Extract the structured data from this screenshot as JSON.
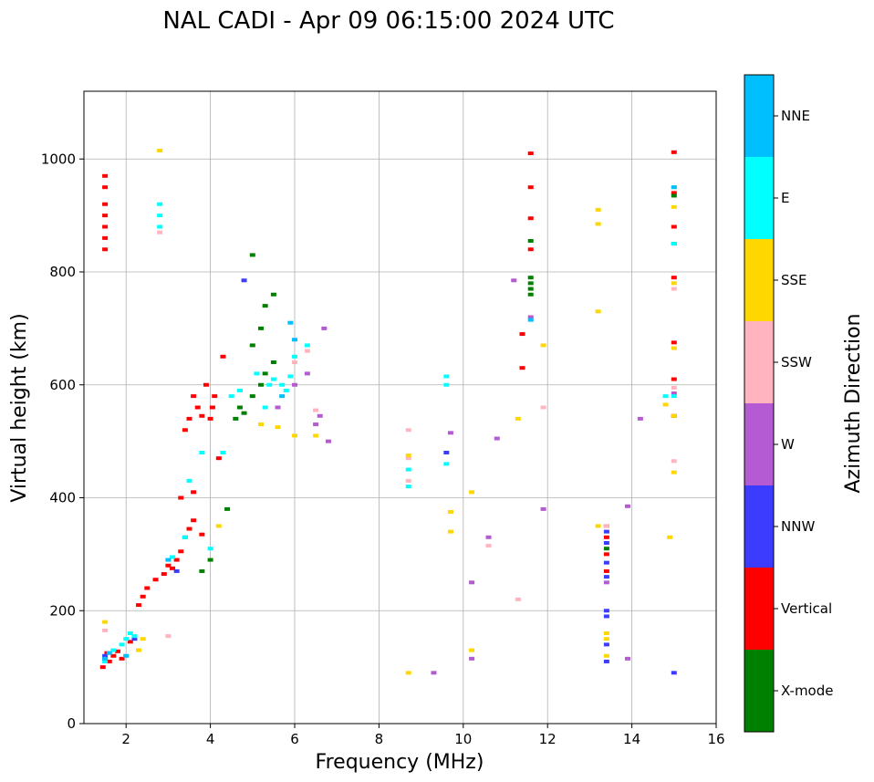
{
  "chart_data": {
    "type": "scatter",
    "title": "NAL CADI - Apr 09 06:15:00 2024 UTC",
    "xlabel": "Frequency (MHz)",
    "ylabel": "Virtual height (km)",
    "xlim": [
      1,
      16
    ],
    "ylim": [
      0,
      1120
    ],
    "xticks": [
      2,
      4,
      6,
      8,
      10,
      12,
      14,
      16
    ],
    "yticks": [
      0,
      200,
      400,
      600,
      800,
      1000
    ],
    "grid": true,
    "colorbar": {
      "label": "Azimuth Direction",
      "categories": [
        {
          "name": "X-mode",
          "color": "#008000"
        },
        {
          "name": "Vertical",
          "color": "#ff0000"
        },
        {
          "name": "NNW",
          "color": "#3c3cff"
        },
        {
          "name": "W",
          "color": "#b45ad2"
        },
        {
          "name": "SSW",
          "color": "#ffb4c0"
        },
        {
          "name": "SSE",
          "color": "#ffd700"
        },
        {
          "name": "E",
          "color": "#00ffff"
        },
        {
          "name": "NNE",
          "color": "#00bfff"
        }
      ]
    },
    "series": [
      {
        "name": "Vertical",
        "points": [
          [
            1.45,
            100
          ],
          [
            1.5,
            115
          ],
          [
            1.55,
            125
          ],
          [
            1.6,
            110
          ],
          [
            1.7,
            120
          ],
          [
            1.8,
            128
          ],
          [
            1.9,
            115
          ],
          [
            2.1,
            145
          ],
          [
            2.3,
            210
          ],
          [
            2.4,
            225
          ],
          [
            2.5,
            240
          ],
          [
            2.7,
            255
          ],
          [
            2.9,
            265
          ],
          [
            3.0,
            280
          ],
          [
            3.1,
            275
          ],
          [
            3.2,
            290
          ],
          [
            3.3,
            305
          ],
          [
            3.4,
            330
          ],
          [
            3.5,
            345
          ],
          [
            3.6,
            360
          ],
          [
            3.3,
            400
          ],
          [
            3.6,
            410
          ],
          [
            3.8,
            335
          ],
          [
            3.4,
            520
          ],
          [
            3.5,
            540
          ],
          [
            3.6,
            580
          ],
          [
            3.7,
            560
          ],
          [
            3.8,
            545
          ],
          [
            4.0,
            540
          ],
          [
            4.05,
            560
          ],
          [
            4.1,
            580
          ],
          [
            3.9,
            600
          ],
          [
            4.2,
            470
          ],
          [
            4.3,
            650
          ],
          [
            1.5,
            840
          ],
          [
            1.5,
            860
          ],
          [
            1.5,
            880
          ],
          [
            1.5,
            900
          ],
          [
            1.5,
            920
          ],
          [
            1.5,
            950
          ],
          [
            1.5,
            970
          ],
          [
            11.6,
            1010
          ],
          [
            11.6,
            950
          ],
          [
            11.6,
            895
          ],
          [
            11.6,
            840
          ],
          [
            11.4,
            690
          ],
          [
            11.4,
            630
          ],
          [
            15.0,
            1012
          ],
          [
            15.0,
            880
          ],
          [
            15.0,
            850
          ],
          [
            15.0,
            610
          ],
          [
            15.0,
            545
          ],
          [
            15.0,
            940
          ],
          [
            13.4,
            350
          ],
          [
            13.4,
            330
          ],
          [
            13.4,
            300
          ],
          [
            13.4,
            270
          ],
          [
            15.0,
            790
          ],
          [
            15.0,
            675
          ]
        ]
      },
      {
        "name": "X-mode",
        "points": [
          [
            3.8,
            270
          ],
          [
            4.0,
            290
          ],
          [
            4.4,
            380
          ],
          [
            4.6,
            540
          ],
          [
            4.7,
            560
          ],
          [
            4.8,
            550
          ],
          [
            5.0,
            580
          ],
          [
            5.2,
            600
          ],
          [
            5.3,
            620
          ],
          [
            5.5,
            640
          ],
          [
            5.0,
            670
          ],
          [
            5.2,
            700
          ],
          [
            5.3,
            740
          ],
          [
            5.5,
            760
          ],
          [
            5.0,
            830
          ],
          [
            11.6,
            780
          ],
          [
            11.6,
            770
          ],
          [
            11.6,
            760
          ],
          [
            11.6,
            790
          ],
          [
            11.6,
            855
          ],
          [
            13.4,
            310
          ],
          [
            15.0,
            935
          ]
        ]
      },
      {
        "name": "NNW",
        "points": [
          [
            1.5,
            120
          ],
          [
            2.2,
            150
          ],
          [
            3.2,
            270
          ],
          [
            4.8,
            785
          ],
          [
            13.4,
            110
          ],
          [
            13.4,
            140
          ],
          [
            13.4,
            190
          ],
          [
            13.4,
            200
          ],
          [
            13.4,
            260
          ],
          [
            13.4,
            285
          ],
          [
            13.4,
            320
          ],
          [
            13.4,
            340
          ],
          [
            15.0,
            90
          ],
          [
            9.6,
            480
          ]
        ]
      },
      {
        "name": "W",
        "points": [
          [
            5.6,
            560
          ],
          [
            6.0,
            600
          ],
          [
            6.3,
            620
          ],
          [
            6.5,
            530
          ],
          [
            6.6,
            545
          ],
          [
            6.8,
            500
          ],
          [
            6.7,
            700
          ],
          [
            10.6,
            330
          ],
          [
            10.2,
            250
          ],
          [
            10.2,
            115
          ],
          [
            10.8,
            505
          ],
          [
            11.9,
            380
          ],
          [
            11.2,
            785
          ],
          [
            13.9,
            385
          ],
          [
            14.2,
            540
          ],
          [
            13.9,
            115
          ],
          [
            9.3,
            90
          ],
          [
            13.4,
            250
          ],
          [
            15.0,
            585
          ],
          [
            11.6,
            720
          ],
          [
            9.7,
            515
          ]
        ]
      },
      {
        "name": "SSW",
        "points": [
          [
            1.5,
            165
          ],
          [
            2.8,
            870
          ],
          [
            6.0,
            640
          ],
          [
            6.3,
            660
          ],
          [
            6.5,
            555
          ],
          [
            8.7,
            430
          ],
          [
            8.7,
            470
          ],
          [
            8.7,
            520
          ],
          [
            10.6,
            315
          ],
          [
            11.3,
            220
          ],
          [
            11.9,
            560
          ],
          [
            15.0,
            465
          ],
          [
            15.0,
            595
          ],
          [
            15.0,
            770
          ],
          [
            13.4,
            350
          ],
          [
            3.0,
            155
          ]
        ]
      },
      {
        "name": "SSE",
        "points": [
          [
            1.5,
            180
          ],
          [
            2.3,
            130
          ],
          [
            2.4,
            150
          ],
          [
            2.8,
            1015
          ],
          [
            4.2,
            350
          ],
          [
            5.2,
            530
          ],
          [
            5.6,
            525
          ],
          [
            6.0,
            510
          ],
          [
            6.5,
            510
          ],
          [
            8.7,
            90
          ],
          [
            9.7,
            340
          ],
          [
            9.7,
            375
          ],
          [
            10.2,
            410
          ],
          [
            10.2,
            130
          ],
          [
            11.3,
            540
          ],
          [
            11.9,
            670
          ],
          [
            13.2,
            910
          ],
          [
            13.2,
            885
          ],
          [
            13.2,
            730
          ],
          [
            13.2,
            350
          ],
          [
            13.4,
            150
          ],
          [
            13.4,
            160
          ],
          [
            13.4,
            120
          ],
          [
            14.8,
            565
          ],
          [
            14.9,
            330
          ],
          [
            15.0,
            445
          ],
          [
            15.0,
            915
          ],
          [
            15.0,
            780
          ],
          [
            15.0,
            665
          ],
          [
            15.0,
            545
          ],
          [
            8.7,
            475
          ]
        ]
      },
      {
        "name": "E",
        "points": [
          [
            1.5,
            110
          ],
          [
            1.7,
            130
          ],
          [
            1.9,
            140
          ],
          [
            2.0,
            150
          ],
          [
            2.1,
            160
          ],
          [
            2.2,
            155
          ],
          [
            2.8,
            880
          ],
          [
            2.8,
            900
          ],
          [
            2.8,
            920
          ],
          [
            3.1,
            295
          ],
          [
            3.4,
            330
          ],
          [
            3.5,
            430
          ],
          [
            3.8,
            480
          ],
          [
            4.0,
            310
          ],
          [
            4.5,
            580
          ],
          [
            4.7,
            590
          ],
          [
            5.1,
            620
          ],
          [
            5.3,
            560
          ],
          [
            5.4,
            600
          ],
          [
            5.5,
            610
          ],
          [
            5.7,
            600
          ],
          [
            5.8,
            590
          ],
          [
            5.9,
            615
          ],
          [
            6.0,
            650
          ],
          [
            6.3,
            670
          ],
          [
            9.6,
            600
          ],
          [
            9.6,
            460
          ],
          [
            9.6,
            615
          ],
          [
            14.8,
            580
          ],
          [
            15.0,
            580
          ],
          [
            15.0,
            850
          ],
          [
            15.0,
            950
          ],
          [
            8.7,
            420
          ],
          [
            8.7,
            450
          ],
          [
            4.3,
            480
          ]
        ]
      },
      {
        "name": "NNE",
        "points": [
          [
            1.5,
            115
          ],
          [
            1.6,
            125
          ],
          [
            2.0,
            120
          ],
          [
            3.0,
            290
          ],
          [
            5.9,
            710
          ],
          [
            6.0,
            680
          ],
          [
            5.7,
            580
          ],
          [
            11.6,
            715
          ],
          [
            15.0,
            950
          ]
        ]
      }
    ]
  }
}
